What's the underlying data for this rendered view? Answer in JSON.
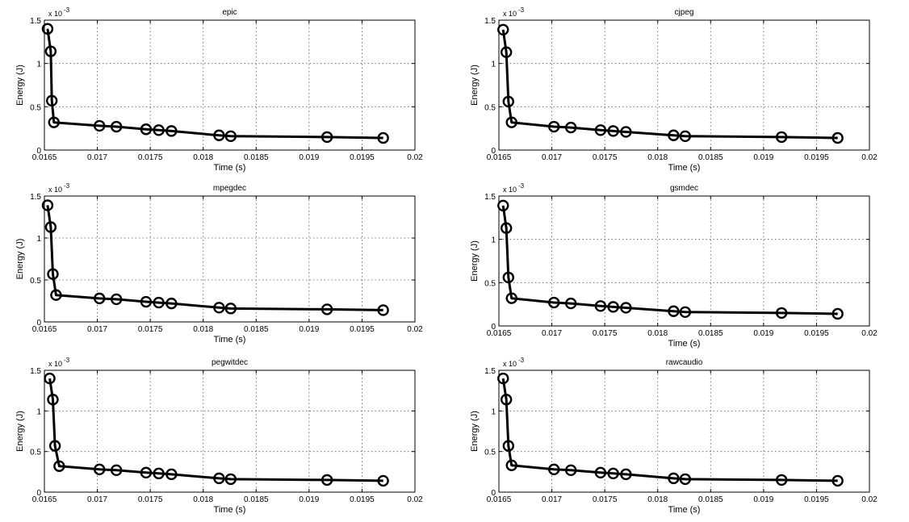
{
  "chart_data": [
    {
      "type": "line",
      "title": "epic",
      "xlabel": "Time (s)",
      "ylabel": "Energy (J)",
      "y_exponent_label": "x 10",
      "y_exponent": "-3",
      "xlim": [
        0.0165,
        0.02
      ],
      "ylim": [
        0,
        1.5
      ],
      "xticks": [
        "0.0165",
        "0.017",
        "0.0175",
        "0.018",
        "0.0185",
        "0.019",
        "0.0195",
        "0.02"
      ],
      "yticks": [
        "0",
        "0.5",
        "1",
        "1.5"
      ],
      "grid": true,
      "x": [
        0.01653,
        0.01656,
        0.01657,
        0.01659,
        0.01702,
        0.01718,
        0.01746,
        0.01758,
        0.0177,
        0.01815,
        0.01826,
        0.01917,
        0.0197
      ],
      "y": [
        1.4,
        1.14,
        0.57,
        0.32,
        0.28,
        0.27,
        0.24,
        0.23,
        0.22,
        0.17,
        0.16,
        0.15,
        0.14
      ]
    },
    {
      "type": "line",
      "title": "cjpeg",
      "xlabel": "Time (s)",
      "ylabel": "Energy (J)",
      "y_exponent_label": "x 10",
      "y_exponent": "-3",
      "xlim": [
        0.0165,
        0.02
      ],
      "ylim": [
        0,
        1.5
      ],
      "xticks": [
        "0.0165",
        "0.017",
        "0.0175",
        "0.018",
        "0.0185",
        "0.019",
        "0.0195",
        "0.02"
      ],
      "yticks": [
        "0",
        "0.5",
        "1",
        "1.5"
      ],
      "grid": true,
      "x": [
        0.01654,
        0.01657,
        0.01659,
        0.01662,
        0.01702,
        0.01718,
        0.01746,
        0.01758,
        0.0177,
        0.01815,
        0.01826,
        0.01917,
        0.0197
      ],
      "y": [
        1.39,
        1.13,
        0.56,
        0.32,
        0.27,
        0.26,
        0.23,
        0.22,
        0.21,
        0.17,
        0.16,
        0.15,
        0.14
      ]
    },
    {
      "type": "line",
      "title": "mpegdec",
      "xlabel": "Time (s)",
      "ylabel": "Energy (J)",
      "y_exponent_label": "x 10",
      "y_exponent": "-3",
      "xlim": [
        0.0165,
        0.02
      ],
      "ylim": [
        0,
        1.5
      ],
      "xticks": [
        "0.0165",
        "0.017",
        "0.0175",
        "0.018",
        "0.0185",
        "0.019",
        "0.0195",
        "0.02"
      ],
      "yticks": [
        "0",
        "0.5",
        "1",
        "1.5"
      ],
      "grid": true,
      "x": [
        0.01653,
        0.01656,
        0.01658,
        0.01661,
        0.01702,
        0.01718,
        0.01746,
        0.01758,
        0.0177,
        0.01815,
        0.01826,
        0.01917,
        0.0197
      ],
      "y": [
        1.39,
        1.13,
        0.57,
        0.32,
        0.28,
        0.27,
        0.24,
        0.23,
        0.22,
        0.17,
        0.16,
        0.15,
        0.14
      ]
    },
    {
      "type": "line",
      "title": "gsmdec",
      "xlabel": "Time (s)",
      "ylabel": "Energy (J)",
      "y_exponent_label": "x 10",
      "y_exponent": "-3",
      "xlim": [
        0.0165,
        0.02
      ],
      "ylim": [
        0,
        1.5
      ],
      "xticks": [
        "0.0165",
        "0.017",
        "0.0175",
        "0.018",
        "0.0185",
        "0.019",
        "0.0195",
        "0.02"
      ],
      "yticks": [
        "0",
        "0.5",
        "1",
        "1.5"
      ],
      "grid": true,
      "x": [
        0.01654,
        0.01657,
        0.01659,
        0.01662,
        0.01702,
        0.01718,
        0.01746,
        0.01758,
        0.0177,
        0.01815,
        0.01826,
        0.01917,
        0.0197
      ],
      "y": [
        1.39,
        1.13,
        0.56,
        0.32,
        0.27,
        0.26,
        0.23,
        0.22,
        0.21,
        0.17,
        0.16,
        0.15,
        0.14
      ]
    },
    {
      "type": "line",
      "title": "pegwitdec",
      "xlabel": "Time (s)",
      "ylabel": "Energy (J)",
      "y_exponent_label": "x 10",
      "y_exponent": "-3",
      "xlim": [
        0.0165,
        0.02
      ],
      "ylim": [
        0,
        1.5
      ],
      "xticks": [
        "0.0165",
        "0.017",
        "0.0175",
        "0.018",
        "0.0185",
        "0.019",
        "0.0195",
        "0.02"
      ],
      "yticks": [
        "0",
        "0.5",
        "1",
        "1.5"
      ],
      "grid": true,
      "x": [
        0.01655,
        0.01658,
        0.0166,
        0.01664,
        0.01702,
        0.01718,
        0.01746,
        0.01758,
        0.0177,
        0.01815,
        0.01826,
        0.01917,
        0.0197
      ],
      "y": [
        1.4,
        1.14,
        0.57,
        0.32,
        0.28,
        0.27,
        0.24,
        0.23,
        0.22,
        0.17,
        0.16,
        0.15,
        0.14
      ]
    },
    {
      "type": "line",
      "title": "rawcaudio",
      "xlabel": "Time (s)",
      "ylabel": "Energy (J)",
      "y_exponent_label": "x 10",
      "y_exponent": "-3",
      "xlim": [
        0.0165,
        0.02
      ],
      "ylim": [
        0,
        1.5
      ],
      "xticks": [
        "0.0165",
        "0.017",
        "0.0175",
        "0.018",
        "0.0185",
        "0.019",
        "0.0195",
        "0.02"
      ],
      "yticks": [
        "0",
        "0.5",
        "1",
        "1.5"
      ],
      "grid": true,
      "x": [
        0.01654,
        0.01657,
        0.01659,
        0.01662,
        0.01702,
        0.01718,
        0.01746,
        0.01758,
        0.0177,
        0.01815,
        0.01826,
        0.01917,
        0.0197
      ],
      "y": [
        1.4,
        1.14,
        0.57,
        0.33,
        0.28,
        0.27,
        0.24,
        0.23,
        0.22,
        0.17,
        0.16,
        0.15,
        0.14
      ]
    }
  ]
}
